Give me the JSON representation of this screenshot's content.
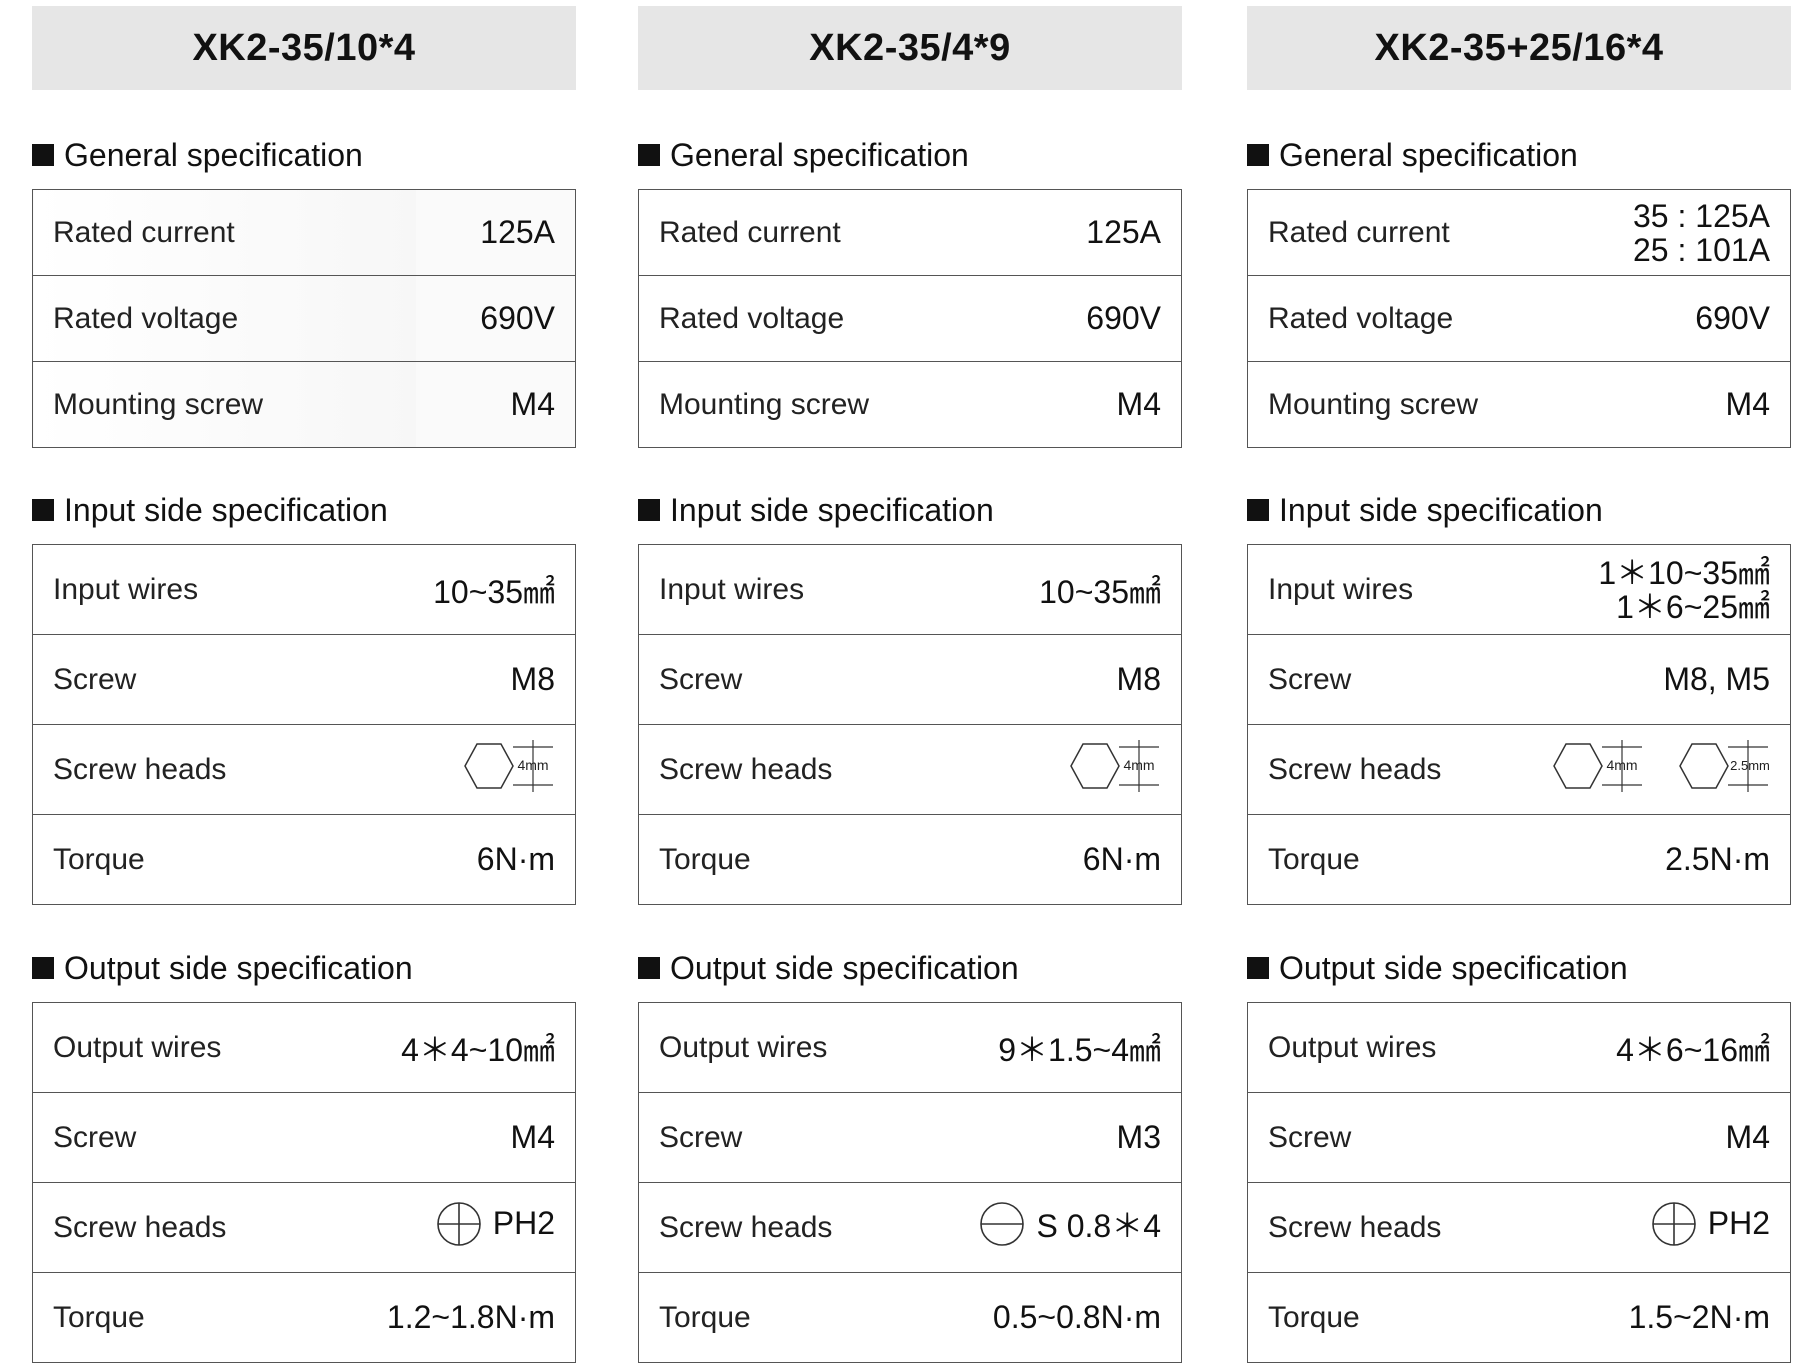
{
  "columns": [
    {
      "title": "XK2-35/10*4",
      "general": {
        "heading": "General specification",
        "rows": [
          {
            "label": "Rated current",
            "value": "125A"
          },
          {
            "label": "Rated voltage",
            "value": "690V"
          },
          {
            "label": "Mounting screw",
            "value": "M4"
          }
        ]
      },
      "input": {
        "heading": "Input side specification",
        "wires_label": "Input wires",
        "wires_value": "10~35㎟",
        "screw_label": "Screw",
        "screw_value": "M8",
        "heads_label": "Screw heads",
        "hex1": "4mm",
        "torque_label": "Torque",
        "torque_value": "6N·m"
      },
      "output": {
        "heading": "Output side specification",
        "wires_label": "Output wires",
        "wires_value": "4＊4~10㎟",
        "screw_label": "Screw",
        "screw_value": "M4",
        "heads_label": "Screw heads",
        "head_value": "PH2",
        "torque_label": "Torque",
        "torque_value": "1.2~1.8N·m"
      }
    },
    {
      "title": "XK2-35/4*9",
      "general": {
        "heading": "General specification",
        "rows": [
          {
            "label": "Rated current",
            "value": "125A"
          },
          {
            "label": "Rated voltage",
            "value": "690V"
          },
          {
            "label": "Mounting screw",
            "value": "M4"
          }
        ]
      },
      "input": {
        "heading": "Input side specification",
        "wires_label": "Input wires",
        "wires_value": "10~35㎟",
        "screw_label": "Screw",
        "screw_value": "M8",
        "heads_label": "Screw heads",
        "hex1": "4mm",
        "torque_label": "Torque",
        "torque_value": "6N·m"
      },
      "output": {
        "heading": "Output side specification",
        "wires_label": "Output wires",
        "wires_value": "9＊1.5~4㎟",
        "screw_label": "Screw",
        "screw_value": "M3",
        "heads_label": "Screw heads",
        "head_value": "S 0.8＊4",
        "torque_label": "Torque",
        "torque_value": "0.5~0.8N·m"
      }
    },
    {
      "title": "XK2-35+25/16*4",
      "general": {
        "heading": "General specification",
        "rows": [
          {
            "label": "Rated current",
            "value_line1": "35 : 125A",
            "value_line2": "25 : 101A"
          },
          {
            "label": "Rated voltage",
            "value": "690V"
          },
          {
            "label": "Mounting screw",
            "value": "M4"
          }
        ]
      },
      "input": {
        "heading": "Input side specification",
        "wires_label": "Input wires",
        "wires_line1": "1＊10~35㎟",
        "wires_line2": "1＊6~25㎟",
        "screw_label": "Screw",
        "screw_value": "M8, M5",
        "heads_label": "Screw heads",
        "hex1": "4mm",
        "hex2": "2.5mm",
        "torque_label": "Torque",
        "torque_value": "2.5N·m"
      },
      "output": {
        "heading": "Output side specification",
        "wires_label": "Output wires",
        "wires_value": "4＊6~16㎟",
        "screw_label": "Screw",
        "screw_value": "M4",
        "heads_label": "Screw heads",
        "head_value": "PH2",
        "torque_label": "Torque",
        "torque_value": "1.5~2N·m"
      }
    }
  ]
}
